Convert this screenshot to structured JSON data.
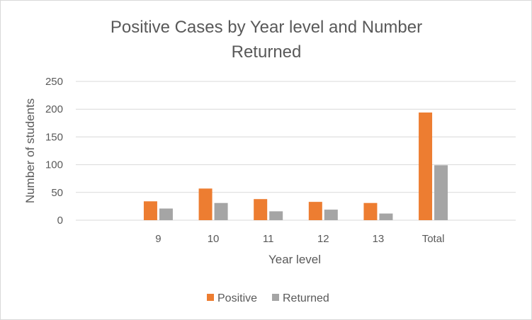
{
  "chart_data": {
    "type": "bar",
    "title_lines": [
      "Positive Cases by Year level and Number",
      "Returned"
    ],
    "xlabel": "Year level",
    "ylabel": "Number of students",
    "categories": [
      "",
      "9",
      "10",
      "11",
      "12",
      "13",
      "Total",
      ""
    ],
    "series": [
      {
        "name": "Positive",
        "color": "#ed7d31",
        "values": [
          null,
          34,
          57,
          38,
          33,
          31,
          194,
          null
        ]
      },
      {
        "name": "Returned",
        "color": "#a5a5a5",
        "values": [
          null,
          21,
          31,
          16,
          19,
          12,
          99,
          null
        ]
      }
    ],
    "ylim": [
      0,
      250
    ],
    "yticks": [
      "0",
      "50",
      "100",
      "150",
      "200",
      "250"
    ],
    "grid": true,
    "legend_position": "bottom"
  }
}
